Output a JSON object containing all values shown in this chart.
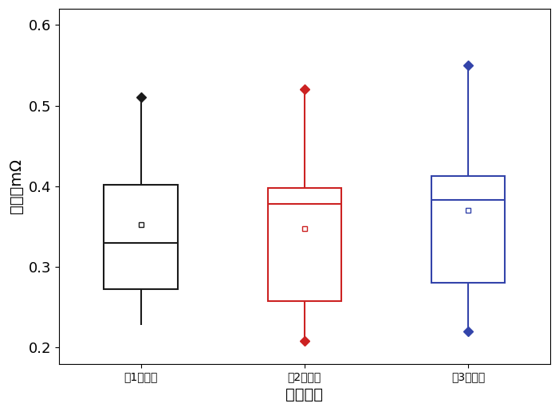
{
  "boxes": [
    {
      "label": "第1次测试",
      "color": "#1a1a1a",
      "whislo": 0.228,
      "q1": 0.272,
      "med": 0.33,
      "q3": 0.402,
      "whishi": 0.49,
      "fliers_high": [
        0.51
      ],
      "fliers_low": [],
      "mean": 0.352
    },
    {
      "label": "第2次测试",
      "color": "#cc2222",
      "whislo": 0.25,
      "q1": 0.258,
      "med": 0.378,
      "q3": 0.398,
      "whishi": 0.49,
      "fliers_high": [
        0.52
      ],
      "fliers_low": [
        0.208
      ],
      "mean": 0.348
    },
    {
      "label": "第3次测试",
      "color": "#3344aa",
      "whislo": 0.225,
      "q1": 0.28,
      "med": 0.383,
      "q3": 0.413,
      "whishi": 0.52,
      "fliers_high": [
        0.55
      ],
      "fliers_low": [
        0.22
      ],
      "mean": 0.37
    }
  ],
  "ylabel": "内阻／mΩ",
  "xlabel": "测试次数",
  "ylim": [
    0.18,
    0.62
  ],
  "yticks": [
    0.2,
    0.3,
    0.4,
    0.5,
    0.6
  ],
  "label_fontsize": 14,
  "tick_fontsize": 13,
  "box_width": 0.45,
  "linewidth": 1.5,
  "flier_markersize": 6,
  "mean_markersize": 5
}
